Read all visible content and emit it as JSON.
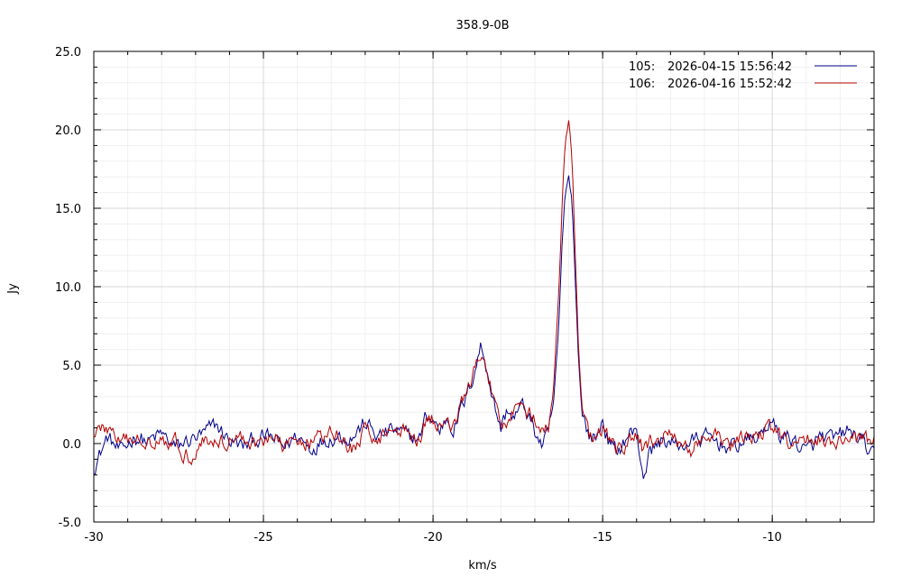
{
  "chart_data": {
    "type": "line",
    "title": "358.9-0B",
    "xlabel": "km/s",
    "ylabel": "Jy",
    "xlim": [
      -30,
      -7
    ],
    "ylim": [
      -5,
      25
    ],
    "x_ticks": [
      -30,
      -25,
      -20,
      -15,
      -10
    ],
    "x_tick_labels": [
      "-30",
      "-25",
      "-20",
      "-15",
      "-10"
    ],
    "y_ticks": [
      -5,
      0,
      5,
      10,
      15,
      20,
      25
    ],
    "y_tick_labels": [
      "-5.0",
      "0.0",
      "5.0",
      "10.0",
      "15.0",
      "20.0",
      "25.0"
    ],
    "grid": true,
    "legend_position": "top-right",
    "noise_baseline": 0.0,
    "series": [
      {
        "id": "105",
        "name": "2026-04-15 15:56:42",
        "label_id": "105:",
        "color": "#00008b",
        "points": [
          [
            -30,
            -1.5
          ],
          [
            -29.6,
            0.4
          ],
          [
            -29.2,
            -0.6
          ],
          [
            -28.8,
            0.5
          ],
          [
            -28.4,
            0.1
          ],
          [
            -28,
            0.6
          ],
          [
            -27.6,
            -0.3
          ],
          [
            -27.2,
            0.2
          ],
          [
            -26.8,
            0.5
          ],
          [
            -26.4,
            1.2
          ],
          [
            -26,
            0.2
          ],
          [
            -25.6,
            -0.2
          ],
          [
            -25.2,
            0.3
          ],
          [
            -24.8,
            0.4
          ],
          [
            -24.4,
            -0.2
          ],
          [
            -24,
            0.5
          ],
          [
            -23.6,
            -0.3
          ],
          [
            -23.2,
            0.3
          ],
          [
            -22.8,
            0.5
          ],
          [
            -22.4,
            0.4
          ],
          [
            -22.0,
            1.3
          ],
          [
            -21.6,
            0.4
          ],
          [
            -21.2,
            0.9
          ],
          [
            -20.8,
            0.5
          ],
          [
            -20.4,
            0.3
          ],
          [
            -20.2,
            1.8
          ],
          [
            -20.0,
            1.5
          ],
          [
            -19.8,
            0.8
          ],
          [
            -19.6,
            1.7
          ],
          [
            -19.4,
            1.0
          ],
          [
            -19.2,
            2.0
          ],
          [
            -19.0,
            3.0
          ],
          [
            -18.8,
            4.5
          ],
          [
            -18.6,
            6.2
          ],
          [
            -18.4,
            4.8
          ],
          [
            -18.2,
            2.5
          ],
          [
            -18.0,
            1.0
          ],
          [
            -17.8,
            2.2
          ],
          [
            -17.6,
            1.6
          ],
          [
            -17.4,
            2.4
          ],
          [
            -17.2,
            1.9
          ],
          [
            -17.0,
            0.8
          ],
          [
            -16.8,
            -0.1
          ],
          [
            -16.6,
            0.5
          ],
          [
            -16.45,
            2.5
          ],
          [
            -16.3,
            7.0
          ],
          [
            -16.2,
            12.5
          ],
          [
            -16.1,
            16.0
          ],
          [
            -16.0,
            17.1
          ],
          [
            -15.9,
            15.5
          ],
          [
            -15.8,
            10.0
          ],
          [
            -15.7,
            5.0
          ],
          [
            -15.6,
            1.8
          ],
          [
            -15.4,
            0.5
          ],
          [
            -15.2,
            0.3
          ],
          [
            -15.0,
            1.5
          ],
          [
            -14.8,
            0.0
          ],
          [
            -14.6,
            -0.6
          ],
          [
            -14.2,
            0.7
          ],
          [
            -14.0,
            0.6
          ],
          [
            -13.8,
            -2.0
          ],
          [
            -13.6,
            -0.5
          ],
          [
            -13.2,
            0.3
          ],
          [
            -12.8,
            -0.2
          ],
          [
            -12.4,
            0.1
          ],
          [
            -12,
            0.4
          ],
          [
            -11.6,
            0.1
          ],
          [
            -11.2,
            -0.3
          ],
          [
            -10.8,
            0.2
          ],
          [
            -10.4,
            0.4
          ],
          [
            -10.1,
            1.4
          ],
          [
            -9.8,
            0.6
          ],
          [
            -9.4,
            0.3
          ],
          [
            -9.0,
            -0.6
          ],
          [
            -8.6,
            0.4
          ],
          [
            -8.2,
            0.2
          ],
          [
            -7.8,
            0.8
          ],
          [
            -7.4,
            0.3
          ],
          [
            -7,
            -1.0
          ]
        ]
      },
      {
        "id": "106",
        "name": "2026-04-16 15:52:42",
        "label_id": "106:",
        "color": "#b40000",
        "points": [
          [
            -30,
            0.8
          ],
          [
            -29.6,
            1.0
          ],
          [
            -29.2,
            0.0
          ],
          [
            -28.8,
            0.2
          ],
          [
            -28.4,
            0.3
          ],
          [
            -28,
            0.4
          ],
          [
            -27.6,
            0.1
          ],
          [
            -27.2,
            -0.9
          ],
          [
            -26.8,
            0.3
          ],
          [
            -26.4,
            0.0
          ],
          [
            -26,
            0.3
          ],
          [
            -25.6,
            0.3
          ],
          [
            -25.2,
            0.0
          ],
          [
            -24.8,
            0.5
          ],
          [
            -24.4,
            -0.3
          ],
          [
            -24,
            0.3
          ],
          [
            -23.6,
            0.2
          ],
          [
            -23.2,
            0.4
          ],
          [
            -22.8,
            0.5
          ],
          [
            -22.4,
            -0.4
          ],
          [
            -22.0,
            0.7
          ],
          [
            -21.6,
            0.5
          ],
          [
            -21.2,
            0.9
          ],
          [
            -20.8,
            0.8
          ],
          [
            -20.4,
            0.4
          ],
          [
            -20.2,
            1.6
          ],
          [
            -20.0,
            1.5
          ],
          [
            -19.8,
            0.9
          ],
          [
            -19.6,
            1.6
          ],
          [
            -19.4,
            1.3
          ],
          [
            -19.2,
            2.2
          ],
          [
            -19.0,
            3.4
          ],
          [
            -18.8,
            4.5
          ],
          [
            -18.6,
            5.5
          ],
          [
            -18.4,
            4.5
          ],
          [
            -18.2,
            2.5
          ],
          [
            -18.0,
            1.4
          ],
          [
            -17.8,
            1.5
          ],
          [
            -17.6,
            2.5
          ],
          [
            -17.4,
            2.6
          ],
          [
            -17.2,
            2.0
          ],
          [
            -17.0,
            1.5
          ],
          [
            -16.8,
            0.6
          ],
          [
            -16.6,
            1.0
          ],
          [
            -16.45,
            3.5
          ],
          [
            -16.3,
            9.0
          ],
          [
            -16.2,
            15.0
          ],
          [
            -16.1,
            19.5
          ],
          [
            -16.0,
            20.5
          ],
          [
            -15.9,
            18.0
          ],
          [
            -15.8,
            11.5
          ],
          [
            -15.7,
            5.5
          ],
          [
            -15.6,
            2.0
          ],
          [
            -15.4,
            0.3
          ],
          [
            -15.2,
            0.4
          ],
          [
            -15.0,
            0.9
          ],
          [
            -14.8,
            0.2
          ],
          [
            -14.6,
            -0.7
          ],
          [
            -14.2,
            0.2
          ],
          [
            -14.0,
            0.4
          ],
          [
            -13.8,
            -0.4
          ],
          [
            -13.6,
            0.2
          ],
          [
            -13.2,
            0.4
          ],
          [
            -12.8,
            0.1
          ],
          [
            -12.4,
            -0.3
          ],
          [
            -12,
            0.3
          ],
          [
            -11.6,
            0.3
          ],
          [
            -11.2,
            -0.2
          ],
          [
            -10.8,
            0.3
          ],
          [
            -10.4,
            0.6
          ],
          [
            -10.1,
            1.0
          ],
          [
            -9.8,
            0.5
          ],
          [
            -9.4,
            -0.3
          ],
          [
            -9.0,
            0.2
          ],
          [
            -8.6,
            0.5
          ],
          [
            -8.2,
            -0.1
          ],
          [
            -7.8,
            0.5
          ],
          [
            -7.4,
            0.0
          ],
          [
            -7,
            0.3
          ]
        ]
      }
    ]
  }
}
